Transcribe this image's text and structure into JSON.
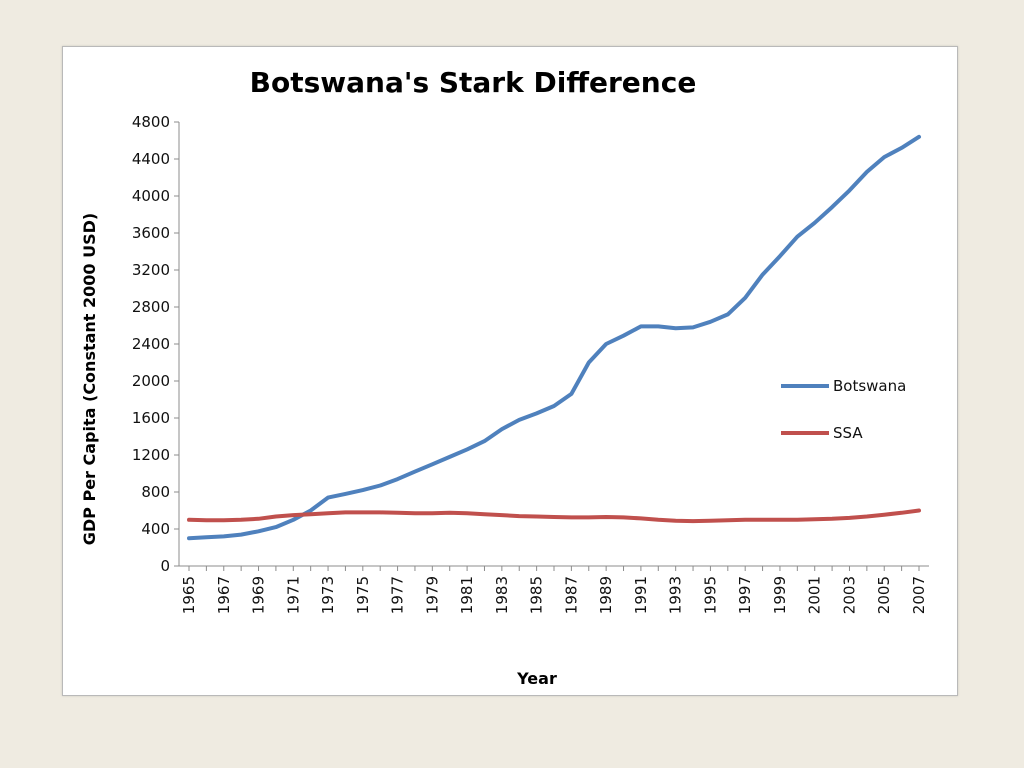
{
  "chart_data": {
    "type": "line",
    "title": "Botswana's Stark Difference",
    "xlabel": "Year",
    "ylabel": "GDP Per Capita (Constant 2000 USD)",
    "ylim": [
      0,
      4800
    ],
    "yticks": [
      0,
      400,
      800,
      1200,
      1600,
      2000,
      2400,
      2800,
      3200,
      3600,
      4000,
      4400,
      4800
    ],
    "xtick_labels": [
      "1965",
      "1967",
      "1969",
      "1971",
      "1973",
      "1975",
      "1977",
      "1979",
      "1981",
      "1983",
      "1985",
      "1987",
      "1989",
      "1991",
      "1993",
      "1995",
      "1997",
      "1999",
      "2001",
      "2003",
      "2005",
      "2007"
    ],
    "x": [
      1965,
      1966,
      1967,
      1968,
      1969,
      1970,
      1971,
      1972,
      1973,
      1974,
      1975,
      1976,
      1977,
      1978,
      1979,
      1980,
      1981,
      1982,
      1983,
      1984,
      1985,
      1986,
      1987,
      1988,
      1989,
      1990,
      1991,
      1992,
      1993,
      1994,
      1995,
      1996,
      1997,
      1998,
      1999,
      2000,
      2001,
      2002,
      2003,
      2004,
      2005,
      2006,
      2007
    ],
    "grid": false,
    "legend_position": "right",
    "series": [
      {
        "name": "Botswana",
        "color": "#4f81bd",
        "values": [
          300,
          310,
          320,
          340,
          375,
          420,
          500,
          600,
          740,
          780,
          820,
          870,
          940,
          1020,
          1100,
          1180,
          1260,
          1350,
          1480,
          1580,
          1650,
          1730,
          1860,
          2200,
          2400,
          2490,
          2590,
          2590,
          2570,
          2580,
          2640,
          2720,
          2900,
          3150,
          3350,
          3560,
          3710,
          3880,
          4060,
          4260,
          4420,
          4520,
          4640
        ]
      },
      {
        "name": "SSA",
        "color": "#c0504d",
        "values": [
          500,
          495,
          495,
          500,
          510,
          535,
          550,
          560,
          570,
          580,
          580,
          580,
          575,
          570,
          570,
          575,
          570,
          560,
          550,
          540,
          535,
          530,
          525,
          525,
          530,
          525,
          515,
          500,
          490,
          485,
          490,
          495,
          500,
          500,
          500,
          500,
          505,
          510,
          520,
          535,
          555,
          575,
          600
        ]
      }
    ]
  }
}
